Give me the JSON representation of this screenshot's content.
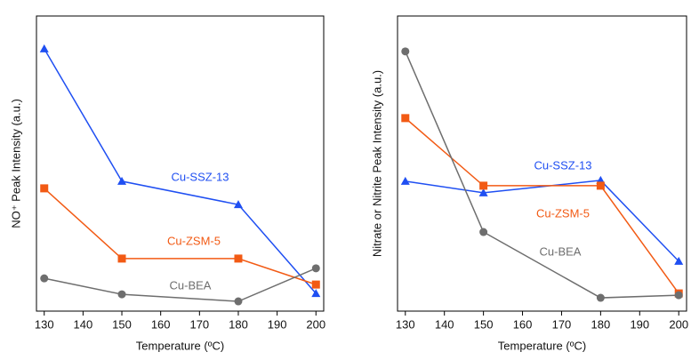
{
  "chart_data": [
    {
      "type": "line",
      "y_label": "NO⁺ Peak Intensity (a.u.)",
      "x_label": "Temperature (ºC)",
      "x": [
        130,
        150,
        180,
        200
      ],
      "xlim": [
        128,
        202
      ],
      "xticks": [
        130,
        140,
        150,
        160,
        170,
        180,
        190,
        200
      ],
      "ylim": [
        0,
        100
      ],
      "series": [
        {
          "name": "Cu-SSZ-13",
          "color": "#1f4ff2",
          "marker": "triangle",
          "values": [
            88.9,
            44,
            36.1,
            6
          ]
        },
        {
          "name": "Cu-ZSM-5",
          "color": "#f25a14",
          "marker": "square",
          "values": [
            41.6,
            17.8,
            17.8,
            9
          ]
        },
        {
          "name": "Cu-BEA",
          "color": "#6e6e6e",
          "marker": "circle",
          "values": [
            11.1,
            5.7,
            3.3,
            14.5
          ]
        }
      ]
    },
    {
      "type": "line",
      "y_label": "Nitrate or Nitrite Peak Intensity (a.u.)",
      "x_label": "Temperature (ºC)",
      "x": [
        130,
        150,
        180,
        200
      ],
      "xlim": [
        128,
        202
      ],
      "xticks": [
        130,
        140,
        150,
        160,
        170,
        180,
        190,
        200
      ],
      "ylim": [
        0,
        100
      ],
      "series": [
        {
          "name": "Cu-SSZ-13",
          "color": "#1f4ff2",
          "marker": "triangle",
          "values": [
            44,
            40.1,
            44.3,
            16.9
          ]
        },
        {
          "name": "Cu-ZSM-5",
          "color": "#f25a14",
          "marker": "square",
          "values": [
            65.4,
            42.5,
            42.5,
            6
          ]
        },
        {
          "name": "Cu-BEA",
          "color": "#6e6e6e",
          "marker": "circle",
          "values": [
            88,
            26.8,
            4.5,
            5.4
          ]
        }
      ]
    }
  ]
}
